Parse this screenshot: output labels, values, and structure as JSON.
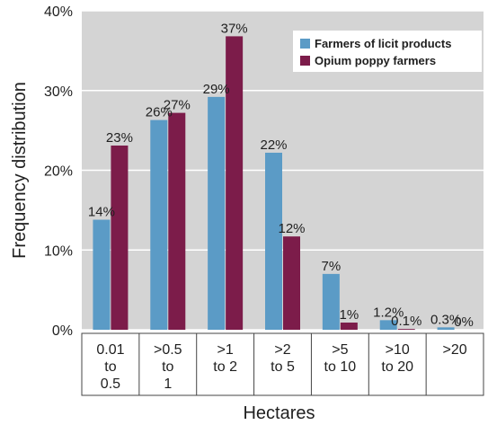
{
  "chart_data": {
    "type": "bar",
    "title": "",
    "xlabel": "Hectares",
    "ylabel": "Frequency distribution",
    "ylim": [
      0,
      40
    ],
    "yticks": [
      {
        "value": 0,
        "label": "0%"
      },
      {
        "value": 10,
        "label": "10%"
      },
      {
        "value": 20,
        "label": "20%"
      },
      {
        "value": 30,
        "label": "30%"
      },
      {
        "value": 40,
        "label": "40%"
      }
    ],
    "categories": [
      [
        "0.01",
        "to",
        "0.5"
      ],
      [
        ">0.5",
        "to",
        "1"
      ],
      [
        ">1",
        "to 2"
      ],
      [
        ">2",
        "to 5"
      ],
      [
        ">5",
        "to 10"
      ],
      [
        ">10",
        "to 20"
      ],
      [
        ">20"
      ]
    ],
    "series": [
      {
        "name": "Farmers of licit products",
        "color": "#5b9bc6",
        "values": [
          13.8,
          26.3,
          29.2,
          22.2,
          7.0,
          1.2,
          0.3
        ],
        "labels": [
          "14%",
          "26%",
          "29%",
          "22%",
          "7%",
          "1.2%",
          "0.3%"
        ]
      },
      {
        "name": "Opium poppy farmers",
        "color": "#7c1c4a",
        "values": [
          23.1,
          27.2,
          36.8,
          11.7,
          0.9,
          0.1,
          0.0
        ],
        "labels": [
          "23%",
          "27%",
          "37%",
          "12%",
          "1%",
          "0.1%",
          "0%"
        ]
      }
    ],
    "plot_background": "#d4d4d4",
    "grid": true,
    "legend_position": "top-right"
  }
}
